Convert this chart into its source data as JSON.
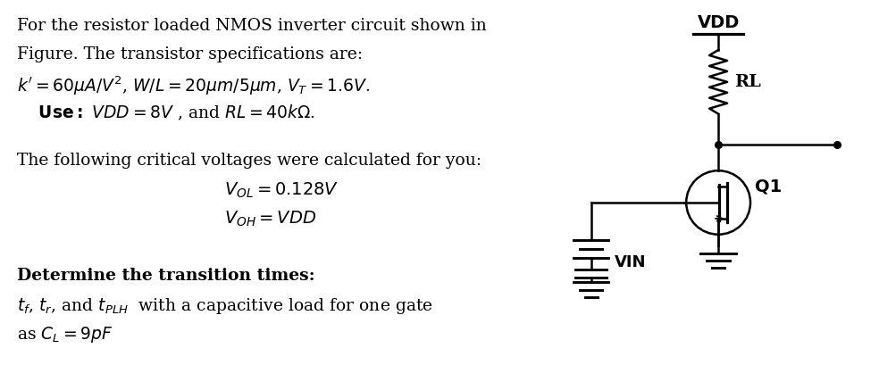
{
  "bg_color": "#ffffff",
  "text_color": "#000000",
  "fig_width": 9.84,
  "fig_height": 4.37,
  "lw": 1.8,
  "circuit_color": "#000000",
  "line1": "For the resistor loaded NMOS inverter circuit shown in",
  "line2": "Figure. The transistor specifications are:",
  "line3": "$k' = 60\\mu A/V^2$, $W/L = 20\\mu m/5\\mu m$, $V_T = 1.6V$.",
  "line4": "    $\\mathbf{Use:}$ $VDD = 8V$ , and $RL = 40k\\Omega$.",
  "line5": "The following critical voltages were calculated for you:",
  "line6": "$V_{OL} = 0.128V$",
  "line7": "$V_{OH} = VDD$",
  "line8": "Determine the transition times:",
  "line9": "$t_f$, $t_r$, and $t_{PLH}$  with a capacitive load for one gate",
  "line10": "as $C_L = 9pF$",
  "vdd_label": "VDD",
  "rl_label": "RL",
  "q1_label": "Q1",
  "vin_label": "VIN"
}
